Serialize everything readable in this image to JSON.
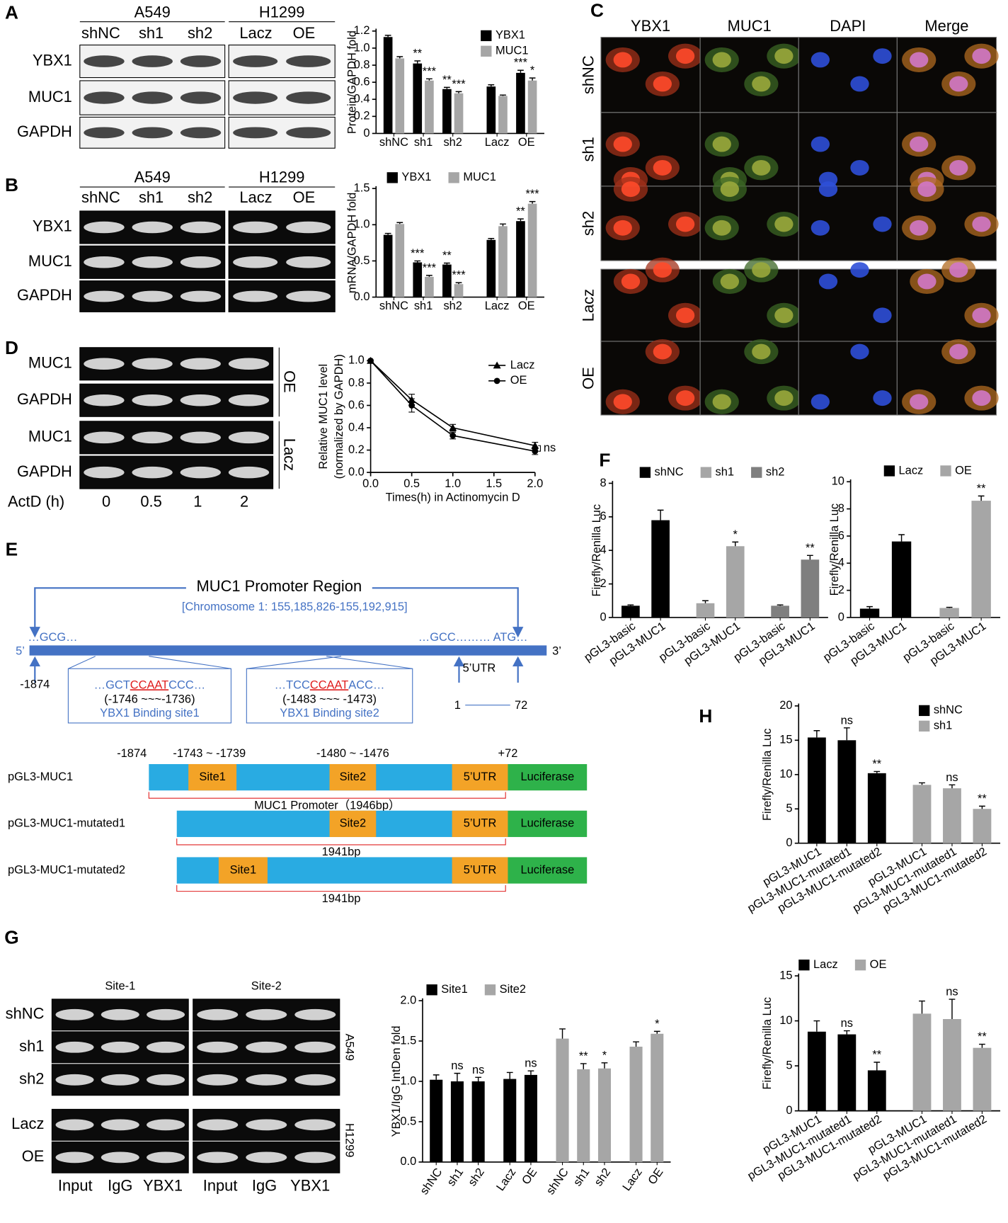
{
  "panels": [
    "A",
    "B",
    "C",
    "D",
    "E",
    "F",
    "G",
    "H"
  ],
  "blots": {
    "A": {
      "groups": [
        "A549",
        "H1299"
      ],
      "lanes": [
        "shNC",
        "sh1",
        "sh2",
        "Lacz",
        "OE"
      ],
      "rows": [
        "YBX1",
        "MUC1",
        "GAPDH"
      ]
    },
    "B": {
      "groups": [
        "A549",
        "H1299"
      ],
      "lanes": [
        "shNC",
        "sh1",
        "sh2",
        "Lacz",
        "OE"
      ],
      "rows": [
        "YBX1",
        "MUC1",
        "GAPDH"
      ]
    },
    "D": {
      "rows": [
        "MUC1",
        "GAPDH",
        "MUC1",
        "GAPDH"
      ],
      "sides": [
        "OE",
        "Lacz"
      ],
      "time_label": "ActD (h)",
      "times": [
        "0",
        "0.5",
        "1",
        "2"
      ]
    },
    "G": {
      "groups": [
        "Site-1",
        "Site-2"
      ],
      "rows": [
        "shNC",
        "sh1",
        "sh2",
        "Lacz",
        "OE"
      ],
      "sides": [
        "A549",
        "H1299"
      ],
      "lanes": [
        "Input",
        "IgG",
        "YBX1",
        "Input",
        "IgG",
        "YBX1"
      ]
    }
  },
  "microscopy": {
    "channels": [
      "YBX1",
      "MUC1",
      "DAPI",
      "Merge"
    ],
    "rows": [
      "shNC",
      "sh1",
      "sh2",
      "Lacz",
      "OE"
    ]
  },
  "promoter_diagram": {
    "title": "MUC1 Promoter Region",
    "location": "[Chromosome 1: 155,185,826-155,192,915]",
    "seq_left": "…GCG…",
    "seq_right": "…GCC……… ATG…",
    "five_prime": "5’",
    "three_prime": "3’",
    "start": "-1874",
    "sites": [
      {
        "pre": "…GCT",
        "core": "CCAAT",
        "post": "CCC…",
        "range": "(-1746 ~~~-1736)",
        "name": "YBX1 Binding site1"
      },
      {
        "pre": "…TCC",
        "core": "CCAAT",
        "post": "ACC…",
        "range": "(-1483 ~~~ -1473)",
        "name": "YBX1 Binding site2"
      }
    ],
    "utr": {
      "label": "5’UTR",
      "start": "1",
      "end": "72"
    },
    "construct_positions": [
      "-1874",
      "-1743 ~ -1739",
      "-1480 ~ -1476",
      "+72"
    ],
    "constructs": [
      {
        "name": "pGL3-MUC1",
        "segments": [
          "Site1",
          "Site2",
          "5’UTR",
          "Luciferase"
        ],
        "length": "MUC1 Promoter（1946bp）"
      },
      {
        "name": "pGL3-MUC1-mutated1",
        "segments": [
          "Site2",
          "5’UTR",
          "Luciferase"
        ],
        "length": "1941bp"
      },
      {
        "name": "pGL3-MUC1-mutated2",
        "segments": [
          "Site1",
          "5’UTR",
          "Luciferase"
        ],
        "length": "1941bp"
      }
    ]
  },
  "chart_data": [
    {
      "type": "bar",
      "ylabel": "Protein/GAPDH fold",
      "legend": "upper right",
      "categories": [
        "shNC",
        "sh1",
        "sh2",
        null,
        "Lacz",
        "OE"
      ],
      "ylim": [
        0,
        1.2
      ],
      "yticks": [
        0,
        0.2,
        0.4,
        0.6,
        0.8,
        {
          "value": 1,
          "label": "1.0"
        },
        1.2
      ],
      "series": [
        {
          "name": "YBX1",
          "color": "#000000",
          "values": [
            1.13,
            0.82,
            0.52,
            null,
            0.55,
            0.71
          ],
          "errors": [
            0.02,
            0.03,
            0.02,
            null,
            0.02,
            0.03
          ],
          "annotations": [
            null,
            "**",
            "**",
            null,
            null,
            "***"
          ]
        },
        {
          "name": "MUC1",
          "color": "#a6a6a6",
          "values": [
            0.88,
            0.62,
            0.47,
            null,
            0.44,
            0.62
          ],
          "errors": [
            0.02,
            0.02,
            0.02,
            null,
            0.01,
            0.03
          ],
          "annotations": [
            null,
            "***",
            "***",
            null,
            null,
            "*"
          ]
        }
      ]
    },
    {
      "type": "bar",
      "ylabel": "mRNA/GAPDH fold",
      "legend": "top",
      "categories": [
        "shNC",
        "sh1",
        "sh2",
        null,
        "Lacz",
        "OE"
      ],
      "ylim": [
        0,
        1.5
      ],
      "yticks": [
        {
          "value": 0,
          "label": "0.0"
        },
        0.5,
        {
          "value": 1,
          "label": "1.0"
        },
        1.5
      ],
      "series": [
        {
          "name": "YBX1",
          "color": "#000000",
          "values": [
            0.86,
            0.48,
            0.45,
            null,
            0.79,
            1.05
          ],
          "errors": [
            0.02,
            0.02,
            0.02,
            null,
            0.02,
            0.03
          ],
          "annotations": [
            null,
            "***",
            "**",
            null,
            null,
            "**"
          ]
        },
        {
          "name": "MUC1",
          "color": "#a6a6a6",
          "values": [
            1.01,
            0.28,
            0.18,
            null,
            0.98,
            1.29
          ],
          "errors": [
            0.02,
            0.02,
            0.02,
            null,
            0.03,
            0.03
          ],
          "annotations": [
            null,
            "***",
            "***",
            null,
            null,
            "***"
          ]
        }
      ]
    },
    {
      "type": "line",
      "ylabel": [
        "Relative MUC1 level",
        "(normalized by GAPDH)"
      ],
      "xlabel": "Times(h) in Actinomycin D",
      "legend": "upper right",
      "annotation": "ns",
      "x": [
        0,
        0.5,
        1,
        2
      ],
      "xlim": [
        0,
        2
      ],
      "xticks": [
        {
          "value": 0,
          "label": "0.0"
        },
        0.5,
        {
          "value": 1,
          "label": "1.0"
        },
        1.5,
        {
          "value": 2,
          "label": "2.0"
        }
      ],
      "ylim": [
        0,
        1
      ],
      "yticks": [
        {
          "value": 0,
          "label": "0.0"
        },
        0.2,
        0.4,
        0.6,
        0.8,
        {
          "value": 1,
          "label": "1.0"
        }
      ],
      "series": [
        {
          "name": "Lacz",
          "color": "#000000",
          "marker": "triangle",
          "values": [
            1,
            0.65,
            0.4,
            0.24
          ],
          "errors": [
            0,
            0.05,
            0.03,
            0.03
          ]
        },
        {
          "name": "OE",
          "color": "#000000",
          "marker": "circle",
          "values": [
            1,
            0.6,
            0.33,
            0.19
          ],
          "errors": [
            0,
            0.06,
            0.03,
            0.03
          ]
        }
      ]
    },
    {
      "type": "bar",
      "ylabel": "Firefly/Renilla Luc",
      "legend": "top",
      "categories": [
        "pGL3-basic",
        "pGL3-MUC1",
        null,
        "pGL3-basic",
        "pGL3-MUC1",
        null,
        "pGL3-basic",
        "pGL3-MUC1"
      ],
      "ylim": [
        0,
        8
      ],
      "yticks": [
        0,
        2,
        4,
        6,
        8
      ],
      "series": [
        {
          "name": "shNC",
          "color": "#000000",
          "values": [
            0.7,
            5.8,
            null,
            null,
            null,
            null,
            null,
            null
          ],
          "errors": [
            0.05,
            0.6,
            null,
            null,
            null,
            null,
            null,
            null
          ]
        },
        {
          "name": "sh1",
          "color": "#a6a6a6",
          "values": [
            null,
            null,
            null,
            0.85,
            4.25,
            null,
            null,
            null
          ],
          "errors": [
            null,
            null,
            null,
            0.15,
            0.25,
            null,
            null,
            null
          ],
          "annotations": [
            null,
            null,
            null,
            null,
            "*",
            null,
            null,
            null
          ]
        },
        {
          "name": "sh2",
          "color": "#7f7f7f",
          "values": [
            null,
            null,
            null,
            null,
            null,
            null,
            0.7,
            3.45
          ],
          "errors": [
            null,
            null,
            null,
            null,
            null,
            null,
            0.05,
            0.25
          ],
          "annotations": [
            null,
            null,
            null,
            null,
            null,
            null,
            null,
            "**"
          ]
        }
      ]
    },
    {
      "type": "bar",
      "ylabel": "Firefly/Renilla Luc",
      "legend": "top",
      "categories": [
        "pGL3-basic",
        "pGL3-MUC1",
        null,
        "pGL3-basic",
        "pGL3-MUC1"
      ],
      "ylim": [
        0,
        10
      ],
      "yticks": [
        0,
        2,
        4,
        6,
        8,
        10
      ],
      "series": [
        {
          "name": "Lacz",
          "color": "#000000",
          "values": [
            0.65,
            5.6,
            null,
            null,
            null
          ],
          "errors": [
            0.15,
            0.5,
            null,
            null,
            null
          ]
        },
        {
          "name": "OE",
          "color": "#a6a6a6",
          "values": [
            null,
            null,
            null,
            0.7,
            8.6
          ],
          "errors": [
            null,
            null,
            null,
            0.05,
            0.35
          ],
          "annotations": [
            null,
            null,
            null,
            null,
            "**"
          ]
        }
      ]
    },
    {
      "type": "bar",
      "ylabel": "YBX1/IgG IntDen fold",
      "legend": "top",
      "categories": [
        "shNC",
        "sh1",
        "sh2",
        null,
        "Lacz",
        "OE",
        null,
        "shNC",
        "sh1",
        "sh2",
        null,
        "Lacz",
        "OE"
      ],
      "ylim": [
        0,
        2
      ],
      "yticks": [
        {
          "value": 0,
          "label": "0.0"
        },
        0.5,
        {
          "value": 1,
          "label": "1.0"
        },
        1.5,
        {
          "value": 2,
          "label": "2.0"
        }
      ],
      "series": [
        {
          "name": "Site1",
          "color": "#000000",
          "values": [
            1.02,
            1.0,
            1.0,
            null,
            1.03,
            1.08,
            null,
            null,
            null,
            null,
            null,
            null,
            null
          ],
          "errors": [
            0.06,
            0.1,
            0.05,
            null,
            0.08,
            0.05,
            null,
            null,
            null,
            null,
            null,
            null,
            null
          ],
          "annotations": [
            null,
            "ns",
            "ns",
            null,
            null,
            "ns",
            null,
            null,
            null,
            null,
            null,
            null,
            null
          ]
        },
        {
          "name": "Site2",
          "color": "#a6a6a6",
          "values": [
            null,
            null,
            null,
            null,
            null,
            null,
            null,
            1.53,
            1.15,
            1.16,
            null,
            1.43,
            1.59
          ],
          "errors": [
            null,
            null,
            null,
            null,
            null,
            null,
            null,
            0.12,
            0.07,
            0.07,
            null,
            0.06,
            0.03
          ],
          "annotations": [
            null,
            null,
            null,
            null,
            null,
            null,
            null,
            null,
            "**",
            "*",
            null,
            null,
            "*"
          ]
        }
      ]
    },
    {
      "type": "bar",
      "ylabel": "Firefly/Renilla Luc",
      "legend": "upper right",
      "categories": [
        "pGL3-MUC1",
        "pGL3-MUC1-mutated1",
        "pGL3-MUC1-mutated2",
        null,
        "pGL3-MUC1",
        "pGL3-MUC1-mutated1",
        "pGL3-MUC1-mutated2"
      ],
      "ylim": [
        0,
        20
      ],
      "yticks": [
        0,
        5,
        10,
        15,
        20
      ],
      "series": [
        {
          "name": "shNC",
          "color": "#000000",
          "values": [
            15.4,
            15.0,
            10.2,
            null,
            null,
            null,
            null
          ],
          "errors": [
            1.0,
            1.8,
            0.25,
            null,
            null,
            null,
            null
          ],
          "annotations": [
            null,
            "ns",
            "**",
            null,
            null,
            null,
            null
          ]
        },
        {
          "name": "sh1",
          "color": "#a6a6a6",
          "values": [
            null,
            null,
            null,
            null,
            8.5,
            8.0,
            5.0
          ],
          "errors": [
            null,
            null,
            null,
            null,
            0.3,
            0.5,
            0.4
          ],
          "annotations": [
            null,
            null,
            null,
            null,
            null,
            "ns",
            "**"
          ]
        }
      ]
    },
    {
      "type": "bar",
      "ylabel": "Firefly/Renilla Luc",
      "legend": "top",
      "categories": [
        "pGL3-MUC1",
        "pGL3-MUC1-mutated1",
        "pGL3-MUC1-mutated2",
        null,
        "pGL3-MUC1",
        "pGL3-MUC1-mutated1",
        "pGL3-MUC1-mutated2"
      ],
      "ylim": [
        0,
        15
      ],
      "yticks": [
        0,
        5,
        10,
        15
      ],
      "series": [
        {
          "name": "Lacz",
          "color": "#000000",
          "values": [
            8.8,
            8.5,
            4.5,
            null,
            null,
            null,
            null
          ],
          "errors": [
            1.2,
            0.4,
            0.9,
            null,
            null,
            null,
            null
          ],
          "annotations": [
            null,
            "ns",
            "**",
            null,
            null,
            null,
            null
          ]
        },
        {
          "name": "OE",
          "color": "#a6a6a6",
          "values": [
            null,
            null,
            null,
            null,
            10.8,
            10.2,
            7.0
          ],
          "errors": [
            null,
            null,
            null,
            null,
            1.4,
            2.2,
            0.4
          ],
          "annotations": [
            null,
            null,
            null,
            null,
            null,
            "ns",
            "**"
          ]
        }
      ]
    }
  ]
}
